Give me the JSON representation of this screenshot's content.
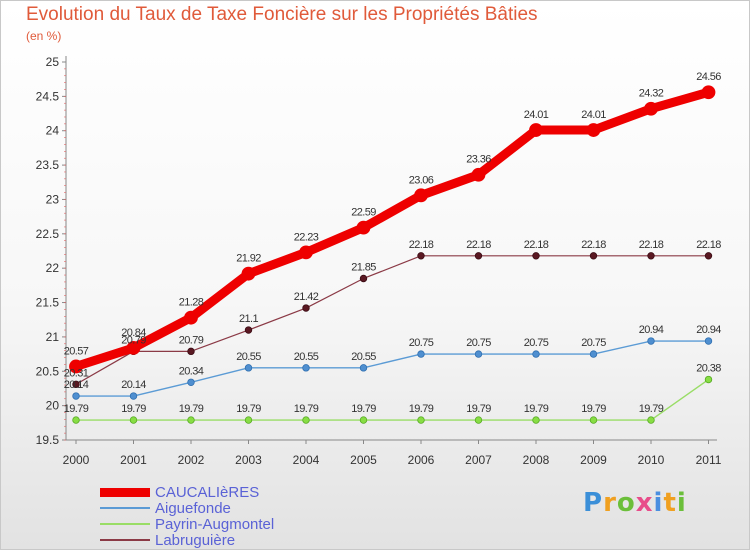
{
  "header": {
    "title": "Evolution du Taux de Taxe Foncière sur les Propriétés Bâties",
    "subtitle": "(en %)"
  },
  "chart_data": {
    "type": "line",
    "title": "Evolution du Taux de Taxe Foncière sur les Propriétés Bâties",
    "ylabel": "(en %)",
    "xlabel": "",
    "x": [
      "2000",
      "2001",
      "2002",
      "2003",
      "2004",
      "2005",
      "2006",
      "2007",
      "2008",
      "2009",
      "2010",
      "2011"
    ],
    "ylim": [
      19.5,
      25
    ],
    "yticks": [
      "19.5",
      "20",
      "20.5",
      "21",
      "21.5",
      "22",
      "22.5",
      "23",
      "23.5",
      "24",
      "24.5",
      "25"
    ],
    "grid": false,
    "legend_position": "bottom-left",
    "series": [
      {
        "name": "CAUCALIèRES",
        "color": "#ee0000",
        "values": [
          20.57,
          20.84,
          21.28,
          21.92,
          22.23,
          22.59,
          23.06,
          23.36,
          24.01,
          24.01,
          24.32,
          24.56
        ],
        "labels": [
          "20.57",
          "20.84",
          "21.28",
          "21.92",
          "22.23",
          "22.59",
          "23.06",
          "23.36",
          "24.01",
          "24.01",
          "24.32",
          "24.56"
        ]
      },
      {
        "name": "Aiguefonde",
        "color": "#5b9bd5",
        "values": [
          20.14,
          20.14,
          20.34,
          20.55,
          20.55,
          20.55,
          20.75,
          20.75,
          20.75,
          20.75,
          20.94,
          20.94
        ],
        "labels": [
          "20.14",
          "20.14",
          "20.34",
          "20.55",
          "20.55",
          "20.55",
          "20.75",
          "20.75",
          "20.75",
          "20.75",
          "20.94",
          "20.94"
        ]
      },
      {
        "name": "Payrin-Augmontel",
        "color": "#99dd66",
        "values": [
          19.79,
          19.79,
          19.79,
          19.79,
          19.79,
          19.79,
          19.79,
          19.79,
          19.79,
          19.79,
          19.79,
          20.38
        ],
        "labels": [
          "19.79",
          "19.79",
          "19.79",
          "19.79",
          "19.79",
          "19.79",
          "19.79",
          "19.79",
          "19.79",
          "19.79",
          "19.79",
          "20.38"
        ]
      },
      {
        "name": "Labruguière",
        "color": "#8b3a46",
        "values": [
          20.31,
          20.79,
          20.79,
          21.1,
          21.42,
          21.85,
          22.18,
          22.18,
          22.18,
          22.18,
          22.18,
          22.18
        ],
        "labels": [
          "20.31",
          "20.79",
          "20.79",
          "21.1",
          "21.42",
          "21.85",
          "22.18",
          "22.18",
          "22.18",
          "22.18",
          "22.18",
          "22.18"
        ]
      }
    ]
  },
  "brand": {
    "logo_text": "Proxiti"
  }
}
